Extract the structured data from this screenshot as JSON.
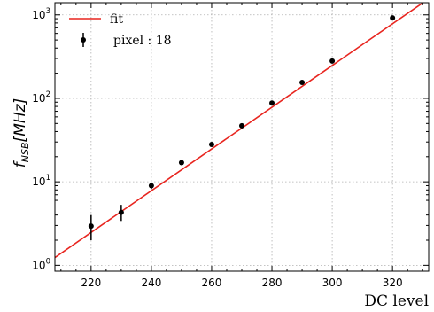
{
  "chart_data": {
    "type": "scatter",
    "title": "",
    "xlabel": "DC level",
    "ylabel": {
      "base": "f",
      "sub": "NSB",
      "rest": "[MHz]"
    },
    "xlim": [
      208,
      332
    ],
    "ylim": [
      0.85,
      1400
    ],
    "yscale": "log",
    "grid": true,
    "legend_position": "top-left",
    "x_ticks": [
      220,
      240,
      260,
      280,
      300,
      320
    ],
    "y_ticks": [
      {
        "value": 1,
        "base": "10",
        "exp": "0"
      },
      {
        "value": 10,
        "base": "10",
        "exp": "1"
      },
      {
        "value": 100,
        "base": "10",
        "exp": "2"
      },
      {
        "value": 1000,
        "base": "10",
        "exp": "3"
      }
    ],
    "series": [
      {
        "name": "fit",
        "kind": "line",
        "color": "#e8251f",
        "x": [
          208,
          332
        ],
        "y": [
          1.24,
          1560
        ]
      },
      {
        "name": "pixel : 18",
        "kind": "errorbar",
        "color": "#000000",
        "x": [
          220,
          230,
          240,
          250,
          260,
          270,
          280,
          290,
          300,
          320
        ],
        "y": [
          2.95,
          4.3,
          9.0,
          17.0,
          28.0,
          47.0,
          88.0,
          155.0,
          280.0,
          920.0
        ],
        "y_low": [
          2.0,
          3.4,
          8.2,
          16.0,
          26.5,
          45.0,
          85.0,
          150.0,
          272.0,
          900.0
        ],
        "y_high": [
          4.0,
          5.3,
          9.8,
          18.0,
          29.5,
          49.0,
          91.0,
          160.0,
          288.0,
          940.0
        ]
      }
    ]
  }
}
